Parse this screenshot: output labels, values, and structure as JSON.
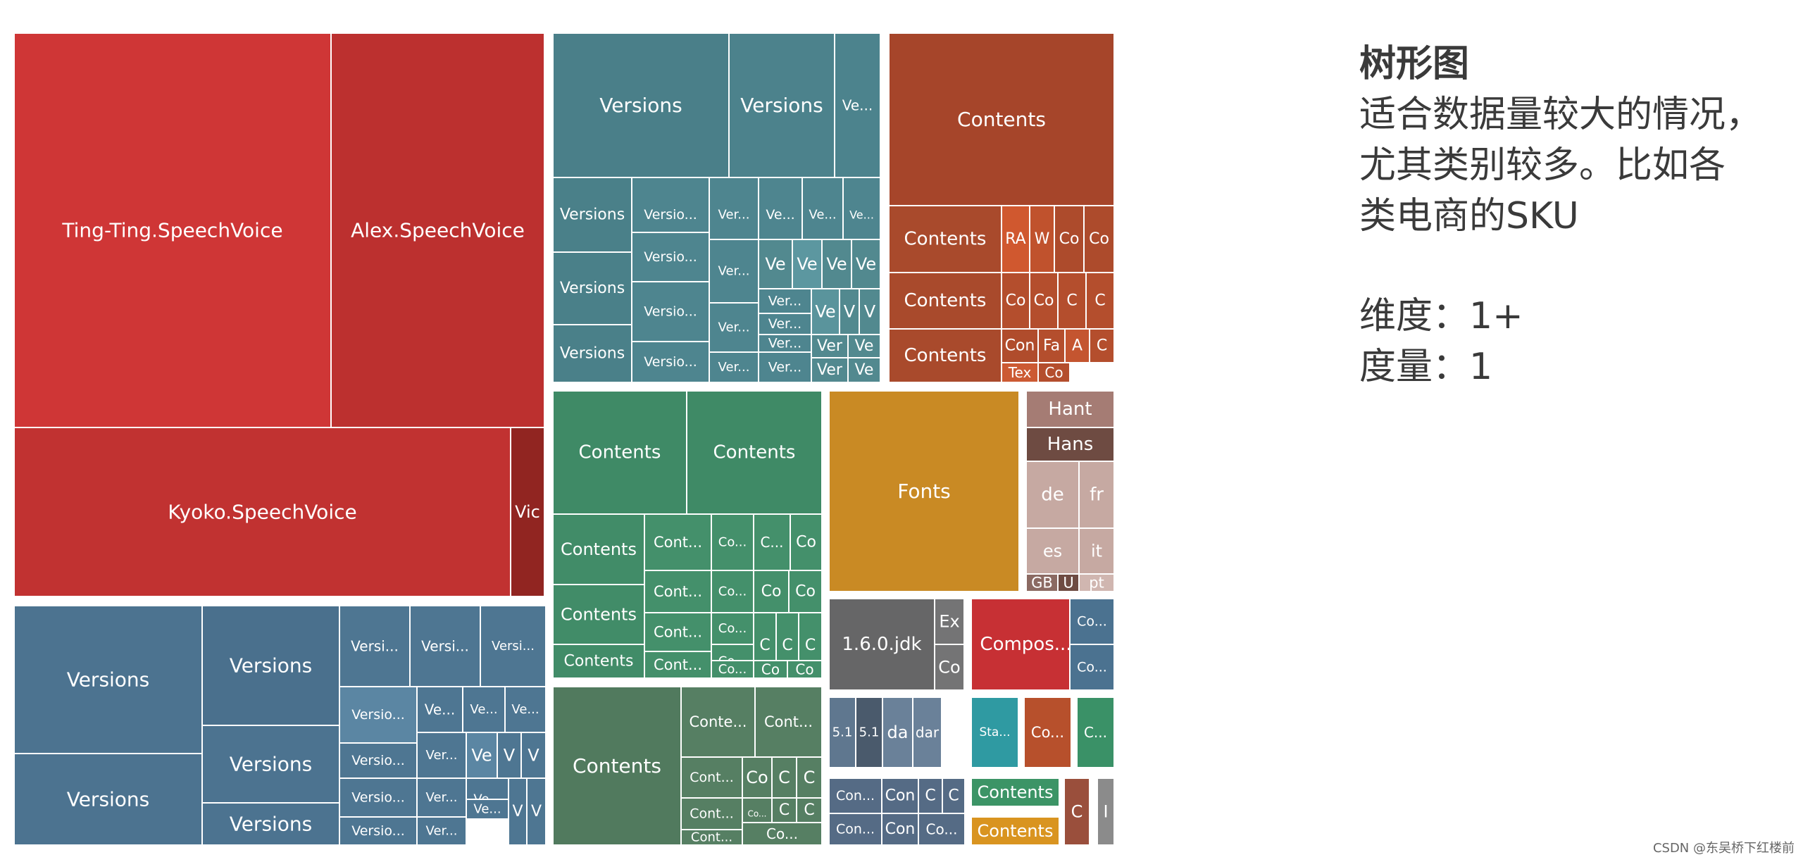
{
  "chart_data": {
    "type": "treemap",
    "tiles": [
      {
        "label": "Ting-Ting.SpeechVoice",
        "color": "#cf3636"
      },
      {
        "label": "Alex.SpeechVoice",
        "color": "#bc302f"
      },
      {
        "label": "Kyoko.SpeechVoice",
        "color": "#c13231"
      },
      {
        "label": "Vic",
        "color": "#912521"
      },
      {
        "label": "Versions",
        "color": "#4a7f89"
      },
      {
        "label": "Versions",
        "color": "#4c828c"
      },
      {
        "label": "Ve...",
        "color": "#4c838d"
      },
      {
        "label": "Versions",
        "color": "#4a8089"
      },
      {
        "label": "Versio...",
        "color": "#4e858f"
      },
      {
        "label": "Ver...",
        "color": "#4e858f"
      },
      {
        "label": "Ve...",
        "color": "#4e858f"
      },
      {
        "label": "Ve...",
        "color": "#4e858f"
      },
      {
        "label": "Ve...",
        "color": "#4e858f"
      },
      {
        "label": "Versio...",
        "color": "#4e858f"
      },
      {
        "label": "Ver...",
        "color": "#4e858f"
      },
      {
        "label": "Ve",
        "color": "#52898f"
      },
      {
        "label": "Ve",
        "color": "#5c97a0"
      },
      {
        "label": "Ve",
        "color": "#52898f"
      },
      {
        "label": "Ve",
        "color": "#52898f"
      },
      {
        "label": "Versions",
        "color": "#4a8089"
      },
      {
        "label": "Versio...",
        "color": "#4e858f"
      },
      {
        "label": "Ver...",
        "color": "#4e858f"
      },
      {
        "label": "Ver...",
        "color": "#4e858f"
      },
      {
        "label": "Ver...",
        "color": "#4e858f"
      },
      {
        "label": "Ve",
        "color": "#5a949c"
      },
      {
        "label": "V",
        "color": "#52898f"
      },
      {
        "label": "V",
        "color": "#52898f"
      },
      {
        "label": "Versions",
        "color": "#4a8089"
      },
      {
        "label": "Versio...",
        "color": "#4e858f"
      },
      {
        "label": "Ver...",
        "color": "#4e858f"
      },
      {
        "label": "Ver...",
        "color": "#4e858f"
      },
      {
        "label": "Ver",
        "color": "#52898f"
      },
      {
        "label": "Ve",
        "color": "#52898f"
      },
      {
        "label": "Ver...",
        "color": "#4e858f"
      },
      {
        "label": "Ver",
        "color": "#52898f"
      },
      {
        "label": "Ve",
        "color": "#52898f"
      },
      {
        "label": "Contents",
        "color": "#a6452a"
      },
      {
        "label": "Contents",
        "color": "#a94a2c"
      },
      {
        "label": "RA",
        "color": "#d0582f"
      },
      {
        "label": "W",
        "color": "#c0522d"
      },
      {
        "label": "Co",
        "color": "#ad4b2c"
      },
      {
        "label": "Co",
        "color": "#ad4b2c"
      },
      {
        "label": "Contents",
        "color": "#a94a2c"
      },
      {
        "label": "Co",
        "color": "#b44e2d"
      },
      {
        "label": "Co",
        "color": "#b44e2d"
      },
      {
        "label": "C",
        "color": "#b44e2d"
      },
      {
        "label": "C",
        "color": "#b44e2d"
      },
      {
        "label": "Contents",
        "color": "#a94a2c"
      },
      {
        "label": "Con",
        "color": "#b04c2c"
      },
      {
        "label": "Fa",
        "color": "#b44e2d"
      },
      {
        "label": "A",
        "color": "#c45530"
      },
      {
        "label": "C",
        "color": "#b44e2d"
      },
      {
        "label": "Tex",
        "color": "#cc5a33"
      },
      {
        "label": "Co",
        "color": "#b44e2d"
      },
      {
        "label": "Contents",
        "color": "#3f8a66"
      },
      {
        "label": "Contents",
        "color": "#3f8a66"
      },
      {
        "label": "Contents",
        "color": "#418c68"
      },
      {
        "label": "Cont...",
        "color": "#44906b"
      },
      {
        "label": "Co...",
        "color": "#44906b"
      },
      {
        "label": "C...",
        "color": "#44906b"
      },
      {
        "label": "Co",
        "color": "#44906b"
      },
      {
        "label": "Contents",
        "color": "#418c68"
      },
      {
        "label": "Cont...",
        "color": "#44906b"
      },
      {
        "label": "Co...",
        "color": "#44906b"
      },
      {
        "label": "Co",
        "color": "#44906b"
      },
      {
        "label": "Co",
        "color": "#44906b"
      },
      {
        "label": "Contents",
        "color": "#418c68"
      },
      {
        "label": "Cont...",
        "color": "#44906b"
      },
      {
        "label": "Co...",
        "color": "#44906b"
      },
      {
        "label": "Co...",
        "color": "#44906b"
      },
      {
        "label": "C",
        "color": "#44906b"
      },
      {
        "label": "C",
        "color": "#44906b"
      },
      {
        "label": "C",
        "color": "#44906b"
      },
      {
        "label": "Cont...",
        "color": "#44906b"
      },
      {
        "label": "Co...",
        "color": "#44906b"
      },
      {
        "label": "Co",
        "color": "#44906b"
      },
      {
        "label": "Co",
        "color": "#44906b"
      },
      {
        "label": "Fonts",
        "color": "#c98a24"
      },
      {
        "label": "Hant",
        "color": "#a57c74"
      },
      {
        "label": "Hans",
        "color": "#6e4b42"
      },
      {
        "label": "de",
        "color": "#c6a9a2"
      },
      {
        "label": "fr",
        "color": "#c6a9a2"
      },
      {
        "label": "es",
        "color": "#c6a9a2"
      },
      {
        "label": "it",
        "color": "#c6a9a2"
      },
      {
        "label": "GB",
        "color": "#8b6a62"
      },
      {
        "label": "U",
        "color": "#6e4b42"
      },
      {
        "label": "pt",
        "color": "#d0b6b0"
      },
      {
        "label": "Versions",
        "color": "#4c7390"
      },
      {
        "label": "Versions",
        "color": "#4c7390"
      },
      {
        "label": "Versions",
        "color": "#4a708d"
      },
      {
        "label": "Versions",
        "color": "#4c7390"
      },
      {
        "label": "Versions",
        "color": "#4c7390"
      },
      {
        "label": "Versi...",
        "color": "#4e7692"
      },
      {
        "label": "Versi...",
        "color": "#4e7692"
      },
      {
        "label": "Versi...",
        "color": "#4e7692"
      },
      {
        "label": "Versio...",
        "color": "#5b86a3"
      },
      {
        "label": "Ve...",
        "color": "#4e7692"
      },
      {
        "label": "Ve...",
        "color": "#4e7692"
      },
      {
        "label": "Ve...",
        "color": "#4e7692"
      },
      {
        "label": "Versio...",
        "color": "#4e7692"
      },
      {
        "label": "Ver...",
        "color": "#4e7692"
      },
      {
        "label": "Ve",
        "color": "#5b86a3"
      },
      {
        "label": "V",
        "color": "#4e7692"
      },
      {
        "label": "V",
        "color": "#4e7692"
      },
      {
        "label": "Versio...",
        "color": "#4e7692"
      },
      {
        "label": "Ver...",
        "color": "#4e7692"
      },
      {
        "label": "Ve...",
        "color": "#4e7692"
      },
      {
        "label": "Ve...",
        "color": "#4e7692"
      },
      {
        "label": "V",
        "color": "#4e7692"
      },
      {
        "label": "V",
        "color": "#4e7692"
      },
      {
        "label": "Versio...",
        "color": "#4e7692"
      },
      {
        "label": "Ver...",
        "color": "#4e7692"
      },
      {
        "label": "Contents",
        "color": "#517a5e"
      },
      {
        "label": "Conte...",
        "color": "#567f63"
      },
      {
        "label": "Cont...",
        "color": "#567f63"
      },
      {
        "label": "Cont...",
        "color": "#567f63"
      },
      {
        "label": "Co",
        "color": "#567f63"
      },
      {
        "label": "C",
        "color": "#567f63"
      },
      {
        "label": "C",
        "color": "#567f63"
      },
      {
        "label": "Cont...",
        "color": "#567f63"
      },
      {
        "label": "Co...",
        "color": "#567f63"
      },
      {
        "label": "C",
        "color": "#567f63"
      },
      {
        "label": "C",
        "color": "#567f63"
      },
      {
        "label": "Cont...",
        "color": "#567f63"
      },
      {
        "label": "Co...",
        "color": "#567f63"
      },
      {
        "label": "1.6.0.jdk",
        "color": "#666667"
      },
      {
        "label": "Ex",
        "color": "#747475"
      },
      {
        "label": "Co",
        "color": "#747475"
      },
      {
        "label": "Compos...",
        "color": "#c73034"
      },
      {
        "label": "Co...",
        "color": "#4b7290"
      },
      {
        "label": "Co...",
        "color": "#4b7290"
      },
      {
        "label": "5.1",
        "color": "#5f778f"
      },
      {
        "label": "5.1",
        "color": "#4a5a6c"
      },
      {
        "label": "da",
        "color": "#6a8199"
      },
      {
        "label": "dar",
        "color": "#6a8199"
      },
      {
        "label": "Con...",
        "color": "#556b85"
      },
      {
        "label": "Con",
        "color": "#556b85"
      },
      {
        "label": "C",
        "color": "#556b85"
      },
      {
        "label": "C",
        "color": "#556b85"
      },
      {
        "label": "Con...",
        "color": "#556b85"
      },
      {
        "label": "Con",
        "color": "#556b85"
      },
      {
        "label": "Co...",
        "color": "#556b85"
      },
      {
        "label": "Sta...",
        "color": "#2f9aa2"
      },
      {
        "label": "Co...",
        "color": "#b7502c"
      },
      {
        "label": "C...",
        "color": "#3a9167"
      },
      {
        "label": "Contents",
        "color": "#3c9466"
      },
      {
        "label": "Contents",
        "color": "#d99420"
      },
      {
        "label": "C",
        "color": "#9a4f3c"
      },
      {
        "label": "I",
        "color": "#8b8b8b"
      }
    ]
  },
  "panel": {
    "title": "树形图",
    "description": "适合数据量较大的情况，\n尤其类别较多。比如各\n类电商的SKU",
    "dimension": "维度：1+",
    "measure": "度量：1"
  },
  "watermark": "CSDN @东吴桥下红楼前"
}
